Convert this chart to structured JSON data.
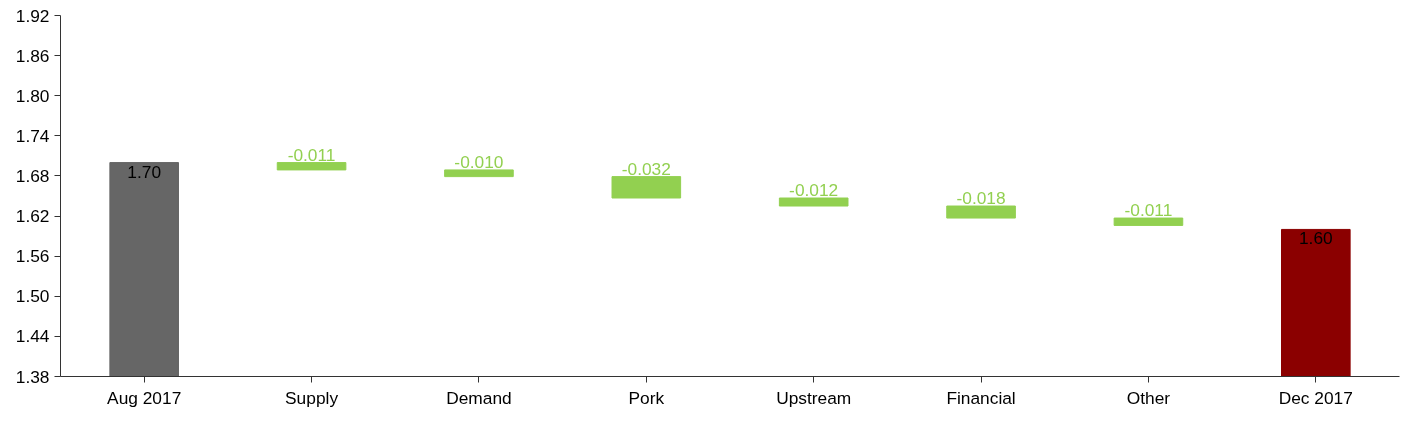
{
  "chart_data": {
    "type": "bar",
    "categories": [
      "Aug 2017",
      "Supply",
      "Demand",
      "Pork",
      "Upstream",
      "Financial",
      "Other",
      "Dec 2017"
    ],
    "values": [
      1.7,
      -0.011,
      -0.01,
      -0.032,
      -0.012,
      -0.018,
      -0.011,
      1.6
    ],
    "base": [
      null,
      1.7,
      1.689,
      1.679,
      1.647,
      1.635,
      1.617,
      null
    ],
    "colors": [
      "#666666",
      "#92d050",
      "#92d050",
      "#92d050",
      "#92d050",
      "#92d050",
      "#92d050",
      "#8b0000"
    ],
    "value_labels": [
      "1.70",
      "-0.011",
      "-0.010",
      "-0.032",
      "-0.012",
      "-0.018",
      "-0.011",
      "1.60"
    ],
    "ylim": [
      1.38,
      1.92
    ],
    "yticks": [
      1.38,
      1.44,
      {
        "value": 1.5,
        "label": "1.50"
      },
      1.56,
      1.62,
      1.68,
      1.74,
      {
        "value": 1.8,
        "label": "1.80"
      },
      1.86,
      1.92
    ],
    "grid": false
  }
}
